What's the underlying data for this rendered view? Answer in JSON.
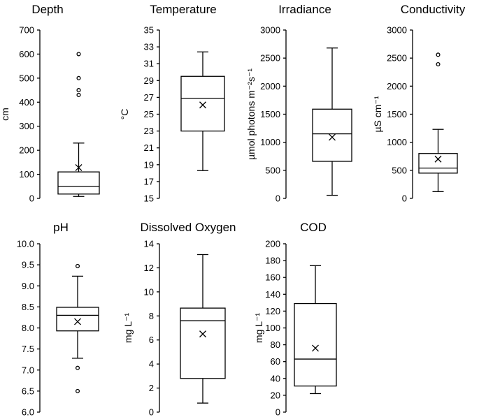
{
  "chart_data": [
    {
      "type": "box",
      "title": "Depth",
      "ylabel": "cm",
      "ylim": [
        0,
        700
      ],
      "yticks": [
        0,
        100,
        200,
        300,
        400,
        500,
        600,
        700
      ],
      "ytick_labels": [
        "0",
        "100",
        "200",
        "300",
        "400",
        "500",
        "600",
        "700"
      ],
      "box": {
        "whisker_low": 8,
        "q1": 18,
        "median": 50,
        "q3": 110,
        "whisker_high": 230,
        "mean": 128
      },
      "outliers": [
        430,
        450,
        500,
        600
      ]
    },
    {
      "type": "box",
      "title": "Temperature",
      "ylabel": "°C",
      "ylim": [
        15,
        35
      ],
      "yticks": [
        15,
        17,
        19,
        21,
        23,
        25,
        27,
        29,
        31,
        33,
        35
      ],
      "ytick_labels": [
        "15",
        "17",
        "19",
        "21",
        "23",
        "25",
        "27",
        "29",
        "31",
        "33",
        "35"
      ],
      "box": {
        "whisker_low": 18.3,
        "q1": 23.0,
        "median": 26.9,
        "q3": 29.5,
        "whisker_high": 32.4,
        "mean": 26.1
      },
      "outliers": []
    },
    {
      "type": "box",
      "title": "Irradiance",
      "ylabel": "µmol photons m⁻²s⁻¹",
      "ylim": [
        0,
        3000
      ],
      "yticks": [
        0,
        500,
        1000,
        1500,
        2000,
        2500,
        3000
      ],
      "ytick_labels": [
        "0",
        "500",
        "1000",
        "1500",
        "2000",
        "2500",
        "3000"
      ],
      "box": {
        "whisker_low": 55,
        "q1": 660,
        "median": 1150,
        "q3": 1590,
        "whisker_high": 2680,
        "mean": 1090
      },
      "outliers": []
    },
    {
      "type": "box",
      "title": "Conductivity",
      "ylabel": "µS cm⁻¹",
      "ylim": [
        0,
        3000
      ],
      "yticks": [
        0,
        500,
        1000,
        1500,
        2000,
        2500,
        3000
      ],
      "ytick_labels": [
        "0",
        "500",
        "1000",
        "1500",
        "2000",
        "2500",
        "3000"
      ],
      "box": {
        "whisker_low": 120,
        "q1": 450,
        "median": 540,
        "q3": 800,
        "whisker_high": 1230,
        "mean": 700
      },
      "outliers": [
        2390,
        2560
      ]
    },
    {
      "type": "box",
      "title": "pH",
      "ylabel": "",
      "ylim": [
        6.0,
        10.0
      ],
      "yticks": [
        6.0,
        6.5,
        7.0,
        7.5,
        8.0,
        8.5,
        9.0,
        9.5,
        10.0
      ],
      "ytick_labels": [
        "6.0",
        "6.5",
        "7.0",
        "7.5",
        "8.0",
        "8.5",
        "9.0",
        "9.5",
        "10.0"
      ],
      "box": {
        "whisker_low": 7.28,
        "q1": 7.93,
        "median": 8.3,
        "q3": 8.49,
        "whisker_high": 9.23,
        "mean": 8.15
      },
      "outliers": [
        6.5,
        7.05,
        9.47
      ]
    },
    {
      "type": "box",
      "title": "Dissolved Oxygen",
      "ylabel": "mg L⁻¹",
      "ylim": [
        0,
        14
      ],
      "yticks": [
        0,
        2,
        4,
        6,
        8,
        10,
        12,
        14
      ],
      "ytick_labels": [
        "0",
        "2",
        "4",
        "6",
        "8",
        "10",
        "12",
        "14"
      ],
      "box": {
        "whisker_low": 0.75,
        "q1": 2.8,
        "median": 7.6,
        "q3": 8.65,
        "whisker_high": 13.1,
        "mean": 6.5
      },
      "outliers": []
    },
    {
      "type": "box",
      "title": "COD",
      "ylabel": "mg L⁻¹",
      "ylim": [
        0,
        200
      ],
      "yticks": [
        0,
        20,
        40,
        60,
        80,
        100,
        120,
        140,
        160,
        180,
        200
      ],
      "ytick_labels": [
        "0",
        "20",
        "40",
        "60",
        "80",
        "100",
        "120",
        "140",
        "160",
        "180",
        "200"
      ],
      "box": {
        "whisker_low": 22,
        "q1": 31,
        "median": 63,
        "q3": 129,
        "whisker_high": 174,
        "mean": 76
      },
      "outliers": []
    }
  ]
}
